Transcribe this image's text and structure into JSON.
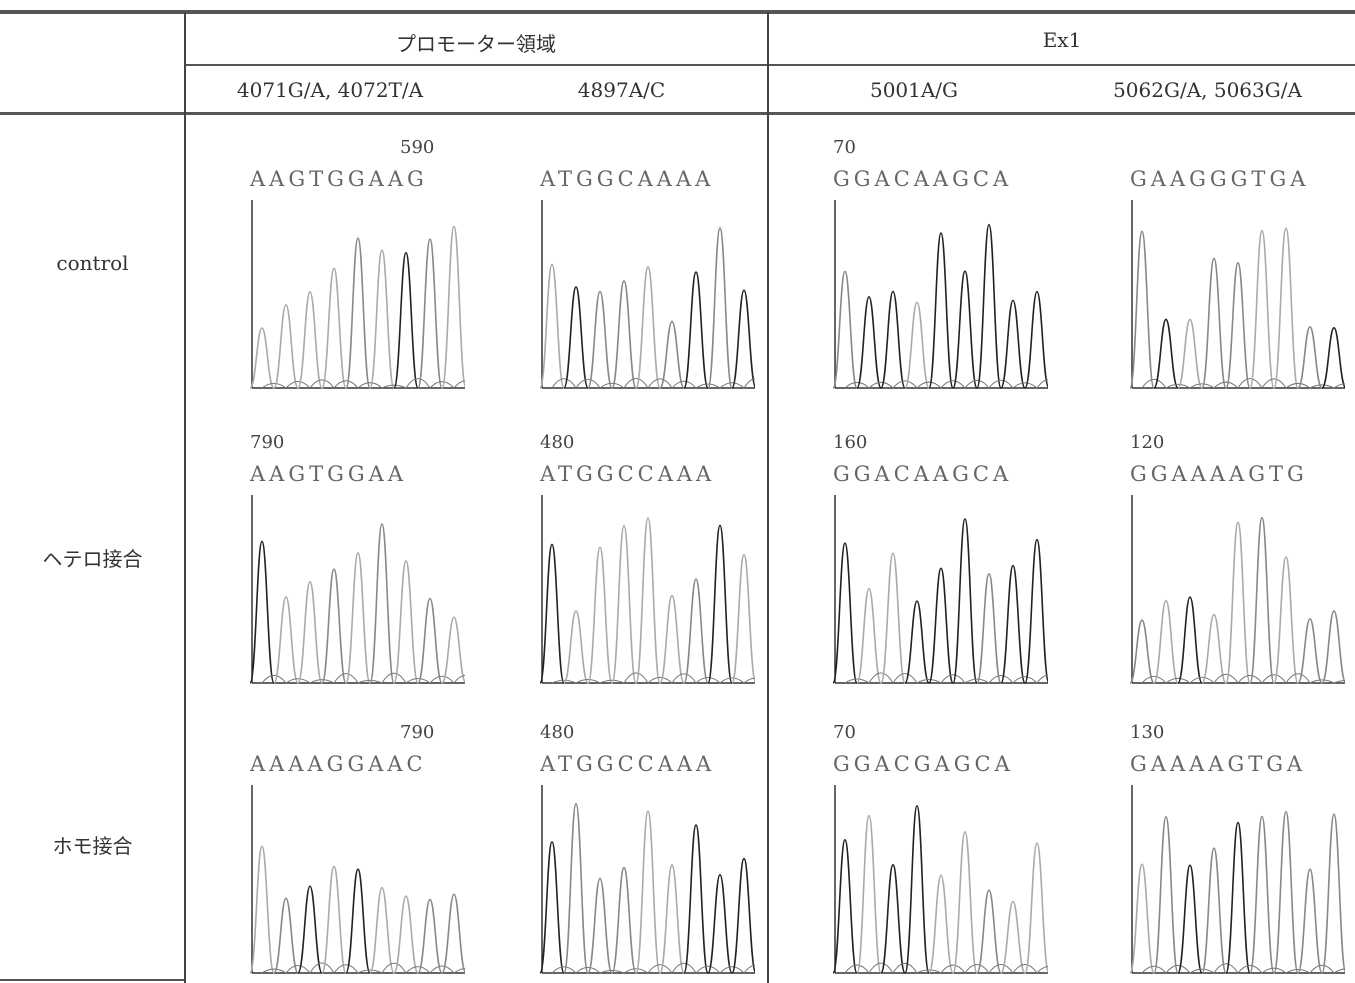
{
  "table": {
    "group_headers": [
      "プロモーター領域",
      "Ex1"
    ],
    "column_headers": [
      "4071G/A, 4072T/A",
      "4897A/C",
      "5001A/G",
      "5062G/A, 5063G/A"
    ],
    "rows": [
      {
        "label": "control",
        "cells": [
          {
            "position": "590",
            "sequence": "AAGTGGAAG"
          },
          {
            "sequence": "ATGGCAAAA"
          },
          {
            "position": "70",
            "sequence": "GGACAAGCA"
          },
          {
            "sequence": "GAAGGGTGA"
          }
        ]
      },
      {
        "label": "ヘテロ接合",
        "cells": [
          {
            "position": "790",
            "sequence": "AAGTGGAA"
          },
          {
            "position": "480",
            "sequence": "ATGGCCAAA"
          },
          {
            "position": "160",
            "sequence": "GGACAAGCA"
          },
          {
            "position": "120",
            "sequence": "GGAAAAGTG"
          }
        ]
      },
      {
        "label": "ホモ接合",
        "cells": [
          {
            "position": "790",
            "sequence": "AAAAGGAAC"
          },
          {
            "position": "480",
            "sequence": "ATGGCCAAA"
          },
          {
            "position": "70",
            "sequence": "GGACGAGCA"
          },
          {
            "position": "130",
            "sequence": "GAAAAGTGA"
          }
        ]
      }
    ]
  }
}
